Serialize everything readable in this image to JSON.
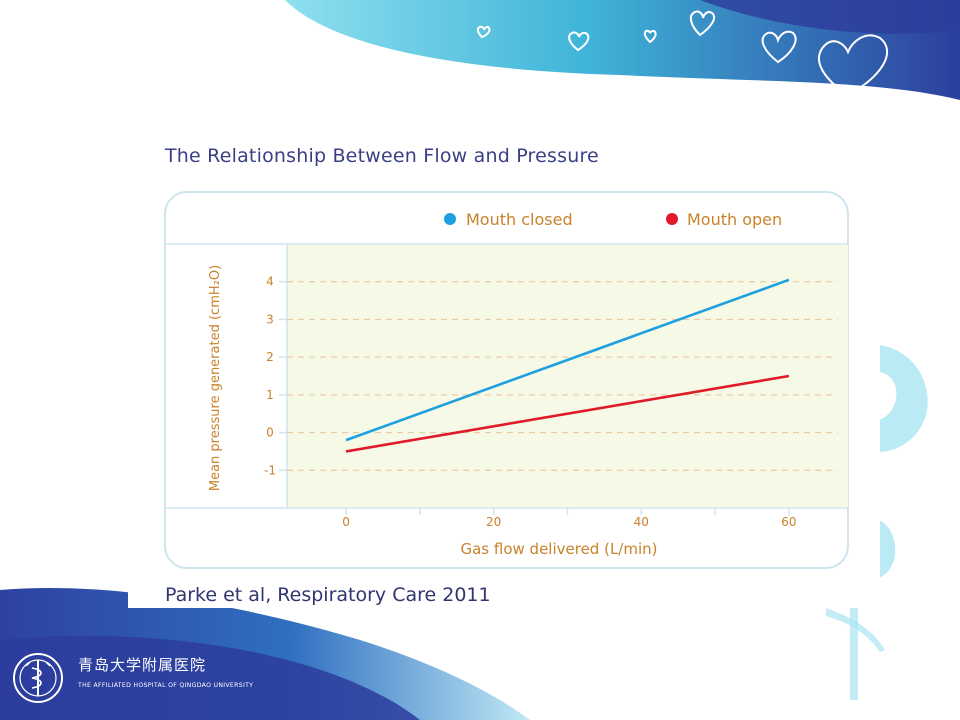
{
  "chart_data": {
    "type": "line",
    "title": "The Relationship Between Flow and Pressure",
    "xlabel": "Gas flow delivered (L/min)",
    "ylabel": "Mean pressure generated (cmH₂O)",
    "xlim": [
      -8,
      68
    ],
    "ylim": [
      -2,
      5
    ],
    "x_ticks": [
      0,
      20,
      40,
      60
    ],
    "y_ticks": [
      -1,
      0,
      1,
      2,
      3,
      4
    ],
    "legend_position": "top-right",
    "series": [
      {
        "name": "Mouth closed",
        "color": "#1ea0e0",
        "x": [
          0,
          60
        ],
        "y": [
          -0.2,
          4.05
        ]
      },
      {
        "name": "Mouth open",
        "color": "#e01a2a",
        "x": [
          0,
          60
        ],
        "y": [
          -0.5,
          1.5
        ]
      }
    ]
  },
  "citation": "Parke et al, Respiratory Care 2011",
  "logo": {
    "name_cn": "青岛大学附属医院",
    "name_en": "THE AFFILIATED HOSPITAL OF QINGDAO UNIVERSITY",
    "icon": "hospital-emblem-icon"
  },
  "colors": {
    "title": "#3a3f86",
    "axis_text": "#c9822b",
    "plot_bg": "#f6f9e6",
    "brand_blue": "#3349a8",
    "decor_cyan": "#6ad3e8"
  }
}
